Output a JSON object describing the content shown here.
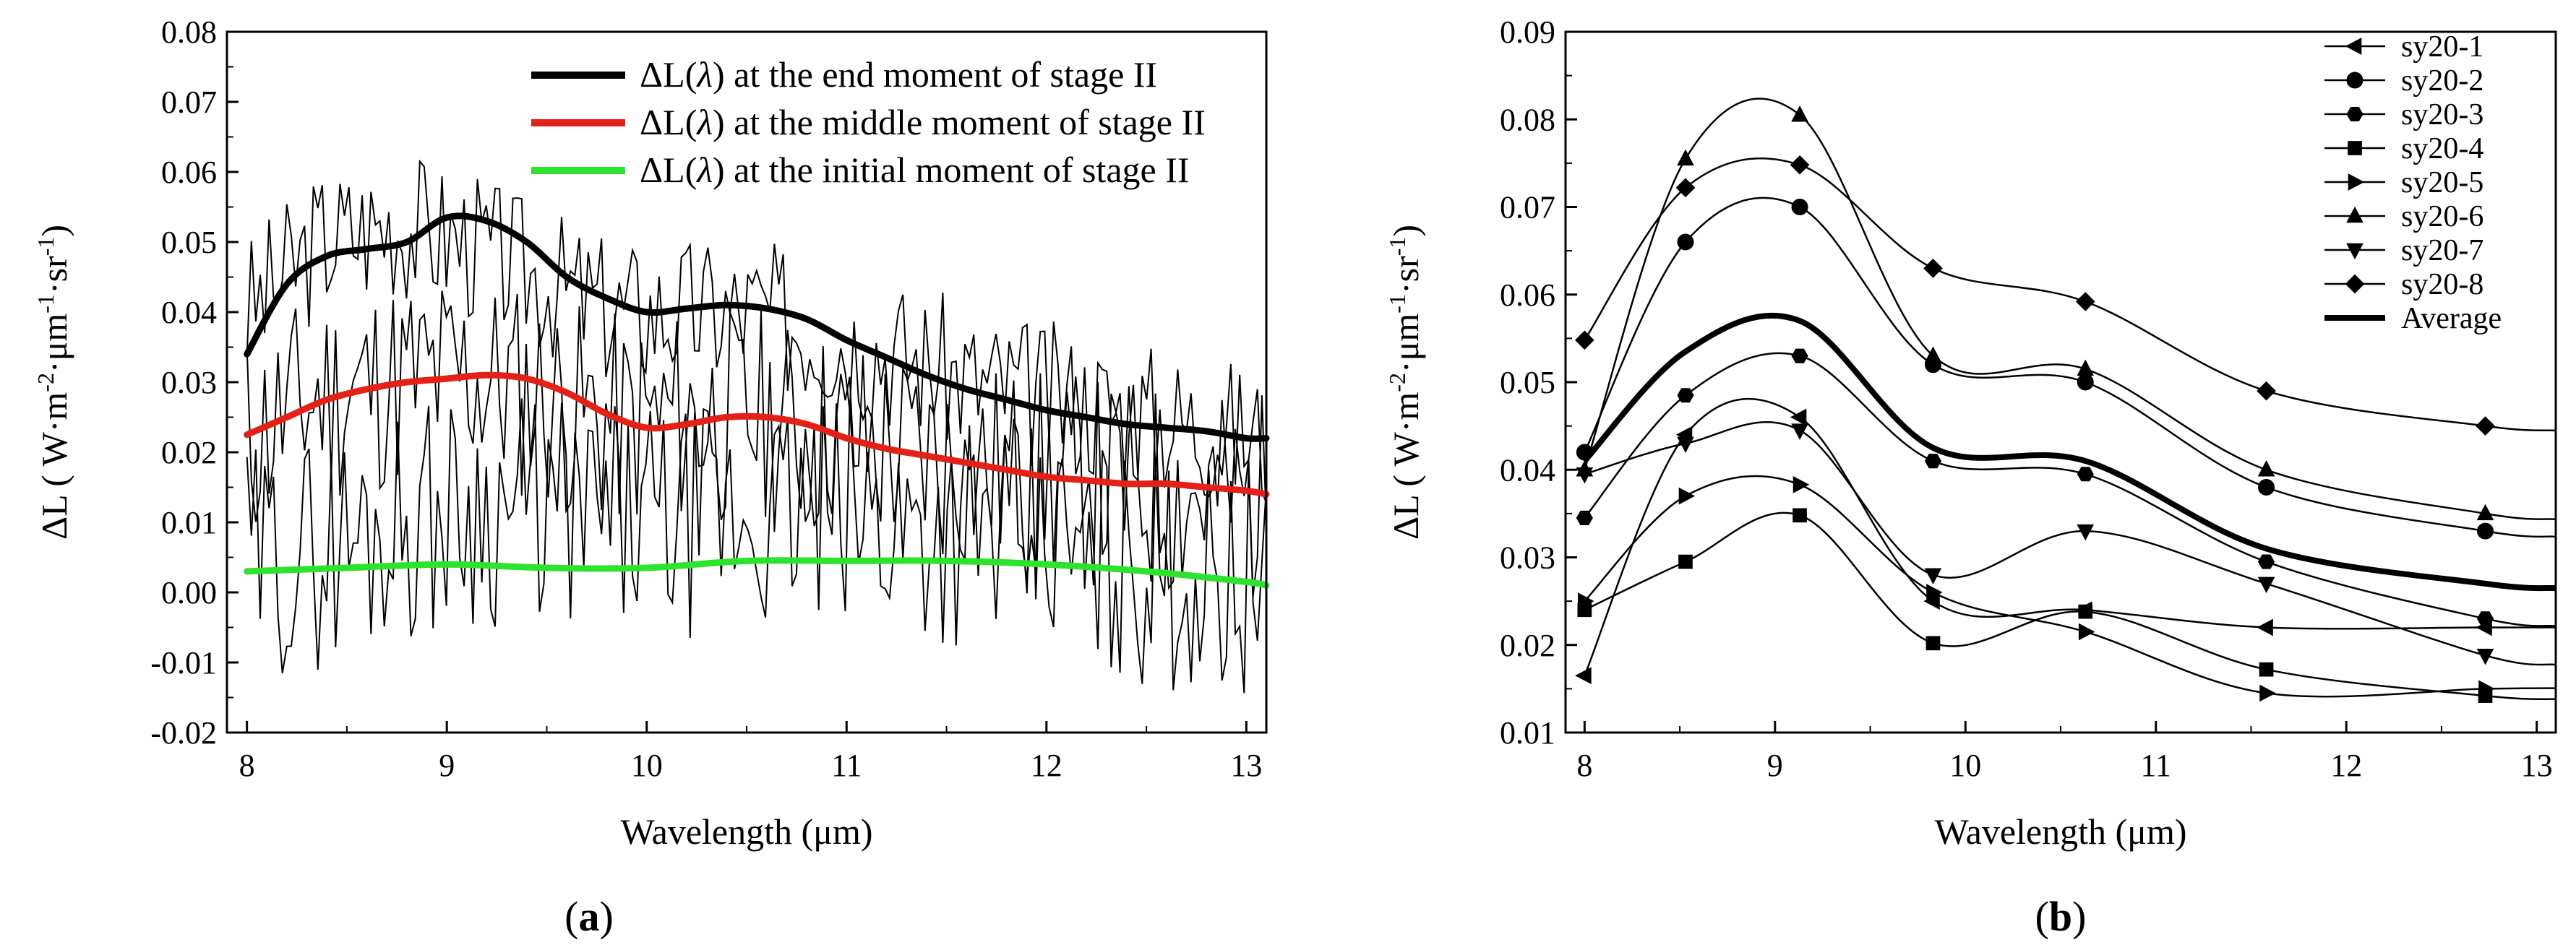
{
  "figure": {
    "panel_labels": [
      {
        "open": "(",
        "letter": "a",
        "close": ")"
      },
      {
        "open": "(",
        "letter": "b",
        "close": ")"
      }
    ]
  },
  "colors": {
    "end": "#000000",
    "middle": "#e32119",
    "initial": "#2ee32e",
    "raw": "#000000"
  },
  "chart_data": [
    {
      "type": "line",
      "panel": "a",
      "xlabel": "Wavelength (μm)",
      "ylabel_parts": [
        "ΔL ( W·m",
        "-2",
        "·μm",
        "-1",
        "·sr",
        "-1",
        ")"
      ],
      "xlim": [
        7.9,
        13.1
      ],
      "ylim": [
        -0.02,
        0.08
      ],
      "xticks": [
        "8",
        "9",
        "10",
        "11",
        "12",
        "13"
      ],
      "yticks": [
        "-0.02",
        "-0.01",
        "0.00",
        "0.01",
        "0.02",
        "0.03",
        "0.04",
        "0.05",
        "0.06",
        "0.07",
        "0.08"
      ],
      "legend": {
        "position": "top-right"
      },
      "series": [
        {
          "name": "ΔL(λ) at the end moment of stage II",
          "legend_parts": [
            "ΔL(",
            "λ",
            ") at the end moment of stage II"
          ],
          "color_key": "end",
          "x": [
            8.0,
            8.2,
            8.4,
            8.6,
            8.8,
            9.0,
            9.2,
            9.4,
            9.6,
            9.8,
            10.0,
            10.2,
            10.4,
            10.6,
            10.8,
            11.0,
            11.2,
            11.4,
            11.6,
            11.8,
            12.0,
            12.2,
            12.4,
            12.6,
            12.8,
            13.0,
            13.1
          ],
          "values": [
            0.034,
            0.044,
            0.048,
            0.049,
            0.05,
            0.0535,
            0.053,
            0.05,
            0.045,
            0.042,
            0.04,
            0.0405,
            0.041,
            0.0405,
            0.039,
            0.036,
            0.0335,
            0.031,
            0.029,
            0.0275,
            0.026,
            0.025,
            0.024,
            0.0235,
            0.023,
            0.022,
            0.022
          ]
        },
        {
          "name": "ΔL(λ) at the middle moment of stage II",
          "legend_parts": [
            "ΔL(",
            "λ",
            ") at the middle moment of stage II"
          ],
          "color_key": "middle",
          "x": [
            8.0,
            8.2,
            8.4,
            8.6,
            8.8,
            9.0,
            9.2,
            9.4,
            9.6,
            9.8,
            10.0,
            10.2,
            10.4,
            10.6,
            10.8,
            11.0,
            11.2,
            11.4,
            11.6,
            11.8,
            12.0,
            12.2,
            12.4,
            12.6,
            12.8,
            13.0,
            13.1
          ],
          "values": [
            0.0225,
            0.025,
            0.0275,
            0.029,
            0.03,
            0.0305,
            0.031,
            0.0305,
            0.0285,
            0.0255,
            0.0235,
            0.024,
            0.025,
            0.025,
            0.024,
            0.022,
            0.0205,
            0.0195,
            0.0185,
            0.0175,
            0.0165,
            0.016,
            0.0155,
            0.0155,
            0.015,
            0.0145,
            0.014
          ]
        },
        {
          "name": "ΔL(λ) at the initial moment of stage II",
          "legend_parts": [
            "ΔL(",
            "λ",
            ") at the initial moment of stage II"
          ],
          "color_key": "initial",
          "x": [
            8.0,
            8.5,
            9.0,
            9.5,
            10.0,
            10.5,
            11.0,
            11.5,
            12.0,
            12.5,
            13.0,
            13.1
          ],
          "values": [
            0.003,
            0.0035,
            0.004,
            0.0035,
            0.0035,
            0.0045,
            0.0045,
            0.0045,
            0.004,
            0.003,
            0.0015,
            0.001
          ]
        }
      ],
      "raw_traces": [
        {
          "x_start": 8.0,
          "x_end": 13.1,
          "center": [
            0.04,
            0.05,
            0.053,
            0.05,
            0.045,
            0.04,
            0.04,
            0.04,
            0.037,
            0.034,
            0.03,
            0.028,
            0.026,
            0.024,
            0.022
          ],
          "amp": 0.011,
          "seed": 3
        },
        {
          "x_start": 8.0,
          "x_end": 13.1,
          "center": [
            0.022,
            0.028,
            0.03,
            0.031,
            0.028,
            0.024,
            0.025,
            0.025,
            0.022,
            0.02,
            0.018,
            0.016,
            0.015,
            0.014,
            0.013
          ],
          "amp": 0.016,
          "seed": 11
        },
        {
          "x_start": 8.0,
          "x_end": 13.1,
          "center": [
            0.004,
            0.006,
            0.01,
            0.012,
            0.012,
            0.01,
            0.01,
            0.011,
            0.011,
            0.01,
            0.009,
            0.007,
            0.004,
            0.002,
            0.002
          ],
          "amp": 0.017,
          "seed": 29
        }
      ]
    },
    {
      "type": "line",
      "panel": "b",
      "xlabel": "Wavelength (μm)",
      "ylabel_parts": [
        "ΔL ( W·m",
        "-2",
        "·μm",
        "-1",
        "·sr",
        "-1",
        ")"
      ],
      "xlim": [
        7.9,
        13.1
      ],
      "ylim": [
        0.01,
        0.09
      ],
      "xticks": [
        "8",
        "9",
        "10",
        "11",
        "12",
        "13"
      ],
      "yticks": [
        "0.01",
        "0.02",
        "0.03",
        "0.04",
        "0.05",
        "0.06",
        "0.07",
        "0.08",
        "0.09"
      ],
      "legend": {
        "position": "top-right"
      },
      "x": [
        8.0,
        8.53,
        9.13,
        9.83,
        10.63,
        11.58,
        12.73
      ],
      "series": [
        {
          "name": "sy20-1",
          "marker": "tri-left",
          "values": [
            0.0165,
            0.044,
            0.046,
            0.025,
            0.024,
            0.022,
            0.022
          ]
        },
        {
          "name": "sy20-2",
          "marker": "circle",
          "values": [
            0.042,
            0.066,
            0.07,
            0.052,
            0.05,
            0.038,
            0.033
          ]
        },
        {
          "name": "sy20-3",
          "marker": "hexagon",
          "values": [
            0.0345,
            0.0485,
            0.053,
            0.041,
            0.0395,
            0.0295,
            0.023
          ]
        },
        {
          "name": "sy20-4",
          "marker": "square",
          "values": [
            0.024,
            0.0295,
            0.0348,
            0.0202,
            0.0238,
            0.0172,
            0.0142
          ]
        },
        {
          "name": "sy20-5",
          "marker": "tri-right",
          "values": [
            0.025,
            0.037,
            0.0383,
            0.026,
            0.0215,
            0.0145,
            0.015
          ]
        },
        {
          "name": "sy20-6",
          "marker": "tri-up",
          "values": [
            0.04,
            0.0755,
            0.0805,
            0.053,
            0.0515,
            0.04,
            0.035
          ]
        },
        {
          "name": "sy20-7",
          "marker": "tri-down",
          "values": [
            0.0395,
            0.043,
            0.0445,
            0.028,
            0.033,
            0.027,
            0.0188
          ]
        },
        {
          "name": "sy20-8",
          "marker": "diamond",
          "values": [
            0.0548,
            0.0722,
            0.0748,
            0.063,
            0.0592,
            0.049,
            0.045
          ]
        },
        {
          "name": "Average",
          "marker": "none",
          "bold": true,
          "values": [
            0.041,
            0.0535,
            0.057,
            0.0425,
            0.041,
            0.031,
            0.027
          ]
        }
      ]
    }
  ]
}
